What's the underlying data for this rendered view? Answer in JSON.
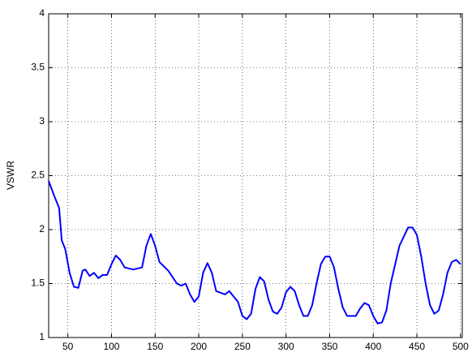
{
  "chart_data": {
    "type": "line",
    "y_label": "VSWR",
    "x": [
      28,
      35,
      40,
      43,
      47,
      52,
      57,
      62,
      67,
      70,
      75,
      80,
      85,
      90,
      95,
      100,
      105,
      110,
      115,
      125,
      135,
      140,
      145,
      150,
      155,
      165,
      175,
      180,
      185,
      190,
      195,
      200,
      205,
      210,
      215,
      220,
      230,
      235,
      240,
      245,
      250,
      255,
      260,
      265,
      270,
      275,
      280,
      285,
      290,
      295,
      300,
      305,
      310,
      315,
      320,
      325,
      330,
      335,
      340,
      345,
      350,
      355,
      360,
      365,
      370,
      380,
      385,
      390,
      395,
      400,
      405,
      410,
      415,
      420,
      430,
      440,
      445,
      450,
      455,
      460,
      465,
      470,
      475,
      480,
      485,
      490,
      495,
      500
    ],
    "series": [
      {
        "name": "VSWR",
        "color": "#0000ff",
        "values": [
          2.45,
          2.3,
          2.2,
          1.9,
          1.82,
          1.6,
          1.47,
          1.46,
          1.62,
          1.63,
          1.57,
          1.6,
          1.55,
          1.58,
          1.58,
          1.68,
          1.76,
          1.72,
          1.65,
          1.63,
          1.65,
          1.85,
          1.96,
          1.85,
          1.7,
          1.62,
          1.5,
          1.48,
          1.5,
          1.4,
          1.33,
          1.38,
          1.6,
          1.69,
          1.6,
          1.43,
          1.4,
          1.43,
          1.38,
          1.33,
          1.2,
          1.17,
          1.22,
          1.45,
          1.56,
          1.52,
          1.35,
          1.24,
          1.22,
          1.28,
          1.42,
          1.47,
          1.43,
          1.3,
          1.2,
          1.2,
          1.3,
          1.5,
          1.68,
          1.75,
          1.75,
          1.65,
          1.45,
          1.28,
          1.2,
          1.2,
          1.27,
          1.32,
          1.3,
          1.2,
          1.13,
          1.14,
          1.25,
          1.5,
          1.85,
          2.02,
          2.02,
          1.95,
          1.75,
          1.5,
          1.3,
          1.22,
          1.25,
          1.4,
          1.6,
          1.7,
          1.72,
          1.68
        ]
      }
    ],
    "xlim": [
      28,
      502
    ],
    "xticks": [
      50,
      100,
      150,
      200,
      250,
      300,
      350,
      400,
      450,
      500
    ],
    "ylim": [
      1,
      4
    ],
    "yticks": [
      1,
      1.5,
      2,
      2.5,
      3,
      3.5,
      4
    ],
    "grid": true
  }
}
